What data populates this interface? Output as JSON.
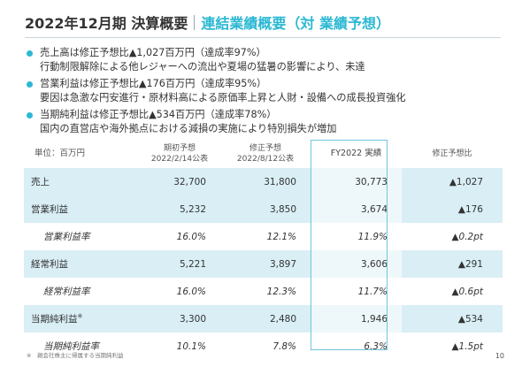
{
  "header": {
    "main_title": "2022年12月期 決算概要",
    "sub_title": "連結業績概要（対 業績予想）"
  },
  "bullets": [
    {
      "line1": "売上高は修正予想比▲1,027百万円（達成率97%）",
      "line2": "行動制限解除による他レジャーへの流出や夏場の猛暑の影響により、未達"
    },
    {
      "line1": "営業利益は修正予想比▲176百万円（達成率95%）",
      "line2": "要因は急激な円安進行・原材料高による原価率上昇と人財・設備への成長投資強化"
    },
    {
      "line1": "当期純利益は修正予想比▲534百万円（達成率78%）",
      "line2": "国内の直営店や海外拠点における減損の実施により特別損失が増加"
    }
  ],
  "table": {
    "unit_label": "単位：百万円",
    "col_initial": {
      "line1": "期初予想",
      "line2": "2022/2/14公表"
    },
    "col_revised": {
      "line1": "修正予想",
      "line2": "2022/8/12公表"
    },
    "col_fy": "FY2022 実績",
    "col_diff": "修正予想比",
    "rows": [
      {
        "label": "売上",
        "initial": "32,700",
        "revised": "31,800",
        "actual": "30,773",
        "diff": "▲1,027"
      },
      {
        "label": "営業利益",
        "initial": "5,232",
        "revised": "3,850",
        "actual": "3,674",
        "diff": "▲176"
      },
      {
        "label": "営業利益率",
        "initial": "16.0%",
        "revised": "12.1%",
        "actual": "11.9%",
        "diff": "▲0.2pt"
      },
      {
        "label": "経常利益",
        "initial": "5,221",
        "revised": "3,897",
        "actual": "3,606",
        "diff": "▲291"
      },
      {
        "label": "経常利益率",
        "initial": "16.0%",
        "revised": "12.3%",
        "actual": "11.7%",
        "diff": "▲0.6pt"
      },
      {
        "label": "当期純利益",
        "label_mark": "※",
        "initial": "3,300",
        "revised": "2,480",
        "actual": "1,946",
        "diff": "▲534"
      },
      {
        "label": "当期純利益率",
        "initial": "10.1%",
        "revised": "7.8%",
        "actual": "6.3%",
        "diff": "▲1.5pt"
      }
    ]
  },
  "footnote": "※　親会社株主に帰属する当期純利益",
  "page_number": "10",
  "colors": {
    "accent": "#2bb8d3",
    "row_shade": "#d9eef5",
    "highlight_border": "#6fc7dc"
  }
}
